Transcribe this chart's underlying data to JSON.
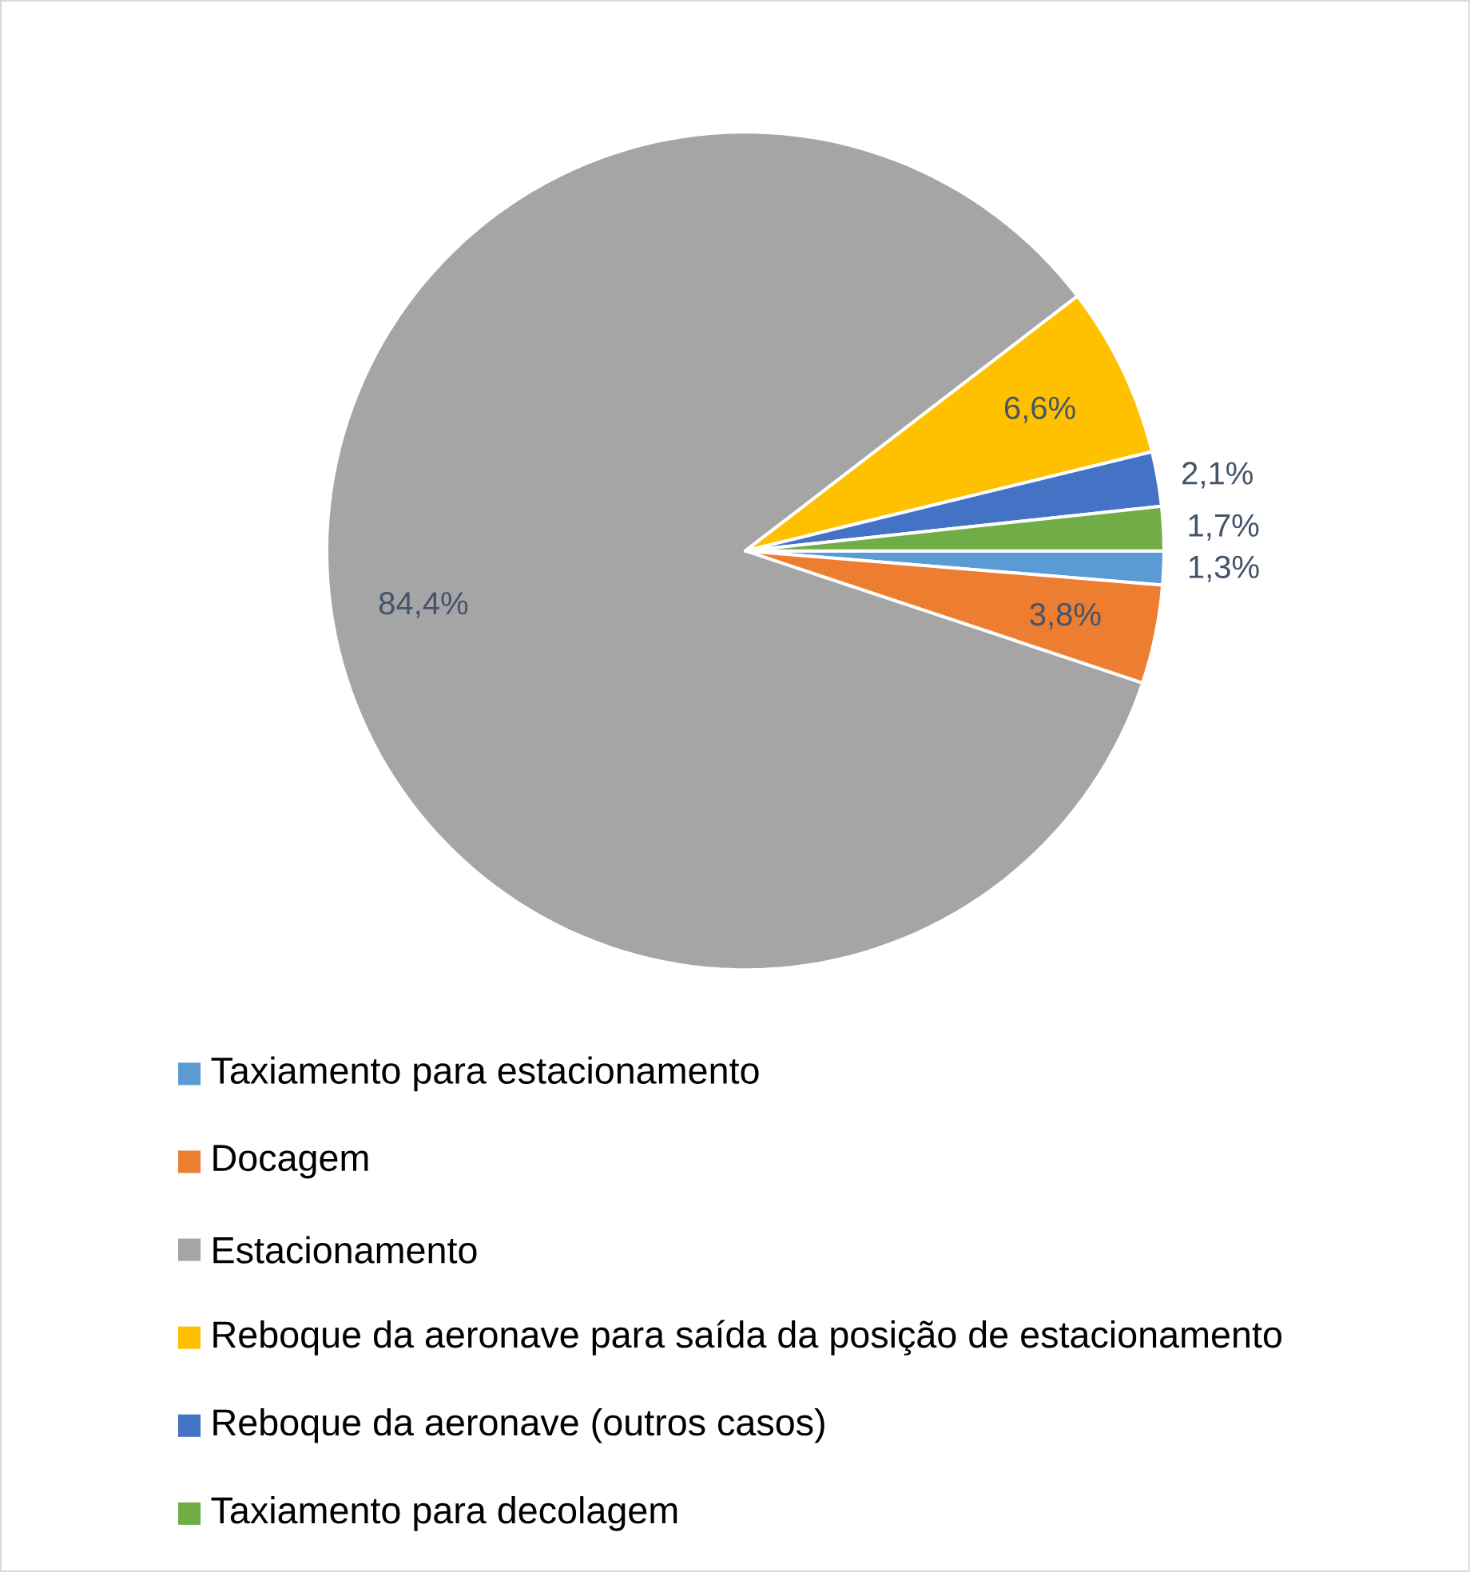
{
  "chart_data": {
    "type": "pie",
    "categories": [
      "Taxiamento para estacionamento",
      "Docagem",
      "Estacionamento",
      "Reboque da aeronave para saída da posição de estacionamento",
      "Reboque da aeronave (outros casos)",
      "Taxiamento para decolagem"
    ],
    "values": [
      1.3,
      3.8,
      84.4,
      6.6,
      2.1,
      1.7
    ],
    "value_labels": [
      "1,3%",
      "3,8%",
      "84,4%",
      "6,6%",
      "2,1%",
      "1,7%"
    ],
    "colors": [
      "#5b9bd5",
      "#ed7d31",
      "#a5a5a5",
      "#ffc000",
      "#4472c4",
      "#70ad47"
    ],
    "legend": "bottom"
  }
}
